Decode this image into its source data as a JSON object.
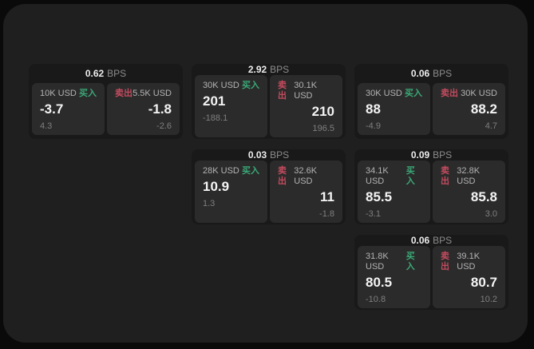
{
  "labels": {
    "bps_unit": "BPS",
    "buy": "买入",
    "sell": "卖出"
  },
  "colors": {
    "buy_green": "#3aa977",
    "sell_red": "#c34b5e",
    "surface_bg": "#1f1f20",
    "card_bg": "#191919",
    "panel_bg": "#2b2b2b"
  },
  "cards": [
    {
      "bps": "0.62",
      "buy": {
        "amount": "10K USD",
        "price": "-3.7",
        "delta": "4.3"
      },
      "sell": {
        "amount": "5.5K USD",
        "price": "-1.8",
        "delta": "-2.6"
      }
    },
    {
      "bps": "2.92",
      "buy": {
        "amount": "30K USD",
        "price": "201",
        "delta": "-188.1"
      },
      "sell": {
        "amount": "30.1K USD",
        "price": "210",
        "delta": "196.5"
      }
    },
    {
      "bps": "0.06",
      "buy": {
        "amount": "30K USD",
        "price": "88",
        "delta": "-4.9"
      },
      "sell": {
        "amount": "30K USD",
        "price": "88.2",
        "delta": "4.7"
      }
    },
    {
      "bps": "0.03",
      "buy": {
        "amount": "28K USD",
        "price": "10.9",
        "delta": "1.3"
      },
      "sell": {
        "amount": "32.6K USD",
        "price": "11",
        "delta": "-1.8"
      }
    },
    {
      "bps": "0.09",
      "buy": {
        "amount": "34.1K USD",
        "price": "85.5",
        "delta": "-3.1"
      },
      "sell": {
        "amount": "32.8K USD",
        "price": "85.8",
        "delta": "3.0"
      }
    },
    {
      "bps": "0.06",
      "buy": {
        "amount": "31.8K USD",
        "price": "80.5",
        "delta": "-10.8"
      },
      "sell": {
        "amount": "39.1K USD",
        "price": "80.7",
        "delta": "10.2"
      }
    }
  ]
}
